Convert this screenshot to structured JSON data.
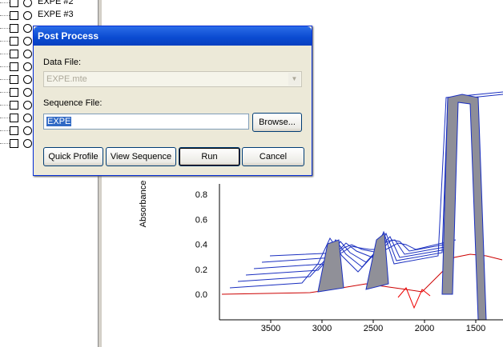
{
  "tree": {
    "items": [
      "EXPE #2",
      "EXPE #3"
    ]
  },
  "dialog": {
    "title": "Post Process",
    "data_file_label": "Data File:",
    "data_file_value": "EXPE.mte",
    "sequence_file_label": "Sequence File:",
    "sequence_file_value": "EXPE",
    "browse": "Browse...",
    "buttons": [
      "Quick Profile",
      "View Sequence",
      "Run",
      "Cancel"
    ]
  },
  "plot": {
    "y_label": "Absorbance",
    "yticks": [
      "0.8",
      "0.6",
      "0.4",
      "0.2",
      "0.0"
    ],
    "xticks": [
      "3500",
      "3000",
      "2500",
      "2000",
      "1500"
    ]
  }
}
